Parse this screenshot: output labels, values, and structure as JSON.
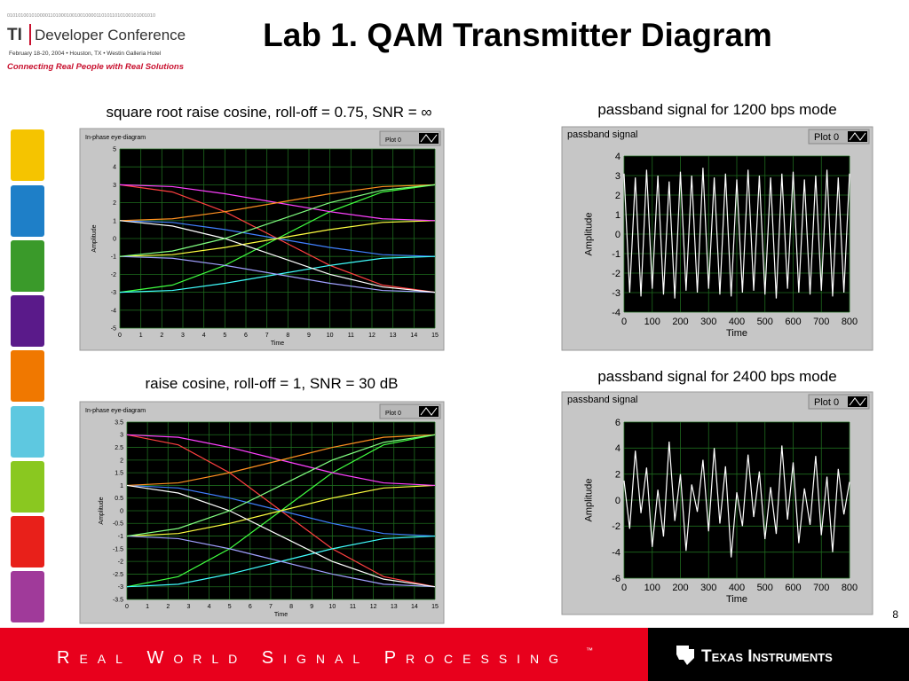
{
  "header": {
    "binary": "0101010010100001101000100100100001101011010100101001010",
    "logo": "TI",
    "conference": "Developer Conference",
    "dates": "February 18-20, 2004 • Houston, TX • Westin Galleria Hotel",
    "slogan": "Connecting Real People with Real Solutions"
  },
  "title": "Lab 1. QAM Transmitter Diagram",
  "page_number": "8",
  "footer": {
    "tagline": "Real World Signal Processing",
    "trademark": "™",
    "company": "Texas Instruments"
  },
  "chart_data": [
    {
      "type": "line",
      "caption": "square root raise cosine, roll-off = 0.75, SNR = ∞",
      "title": "In-phase eye-diagram",
      "legend": "Plot 0",
      "xlabel": "Time",
      "ylabel": "Amplitude",
      "xlim": [
        0,
        15
      ],
      "ylim": [
        -5,
        5
      ],
      "xticks": [
        0,
        1,
        2,
        3,
        4,
        5,
        6,
        7,
        8,
        9,
        10,
        11,
        12,
        13,
        14,
        15
      ],
      "yticks": [
        -5,
        -4,
        -3,
        -2,
        -1,
        0,
        1,
        2,
        3,
        4,
        5
      ],
      "x": [
        0,
        2.5,
        5,
        7.5,
        10,
        12.5,
        15
      ],
      "series": [
        {
          "color": "#ff4040",
          "values": [
            3,
            2.6,
            1.5,
            0,
            -1.5,
            -2.6,
            -3
          ]
        },
        {
          "color": "#40ff40",
          "values": [
            -3,
            -2.6,
            -1.5,
            0,
            1.5,
            2.6,
            3
          ]
        },
        {
          "color": "#4080ff",
          "values": [
            1,
            0.9,
            0.5,
            0,
            -0.5,
            -0.9,
            -1
          ]
        },
        {
          "color": "#ffff40",
          "values": [
            -1,
            -0.9,
            -0.5,
            0,
            0.5,
            0.9,
            1
          ]
        },
        {
          "color": "#ff40ff",
          "values": [
            3,
            2.9,
            2.5,
            2,
            1.5,
            1.1,
            1
          ]
        },
        {
          "color": "#40ffff",
          "values": [
            -3,
            -2.9,
            -2.5,
            -2,
            -1.5,
            -1.1,
            -1
          ]
        },
        {
          "color": "#ff9020",
          "values": [
            1,
            1.1,
            1.5,
            2,
            2.5,
            2.9,
            3
          ]
        },
        {
          "color": "#a0a0ff",
          "values": [
            -1,
            -1.1,
            -1.5,
            -2,
            -2.5,
            -2.9,
            -3
          ]
        },
        {
          "color": "#ffffff",
          "values": [
            1,
            0.7,
            0,
            -1,
            -2,
            -2.7,
            -3
          ]
        },
        {
          "color": "#80ff80",
          "values": [
            -1,
            -0.7,
            0,
            1,
            2,
            2.7,
            3
          ]
        }
      ]
    },
    {
      "type": "line",
      "caption": "raise cosine, roll-off = 1, SNR = 30 dB",
      "title": "In-phase eye-diagram",
      "legend": "Plot 0",
      "xlabel": "Time",
      "ylabel": "Amplitude",
      "xlim": [
        0,
        15
      ],
      "ylim": [
        -3.5,
        3.5
      ],
      "xticks": [
        0,
        1,
        2,
        3,
        4,
        5,
        6,
        7,
        8,
        9,
        10,
        11,
        12,
        13,
        14,
        15
      ],
      "yticks": [
        -3.5,
        -3,
        -2.5,
        -2,
        -1.5,
        -1,
        -0.5,
        0,
        0.5,
        1,
        1.5,
        2,
        2.5,
        3,
        3.5
      ],
      "x": [
        0,
        2.5,
        5,
        7.5,
        10,
        12.5,
        15
      ],
      "series": [
        {
          "color": "#ff4040",
          "values": [
            3,
            2.6,
            1.5,
            0,
            -1.5,
            -2.6,
            -3
          ]
        },
        {
          "color": "#40ff40",
          "values": [
            -3,
            -2.6,
            -1.5,
            0,
            1.5,
            2.6,
            3
          ]
        },
        {
          "color": "#4080ff",
          "values": [
            1,
            0.9,
            0.5,
            0,
            -0.5,
            -0.9,
            -1
          ]
        },
        {
          "color": "#ffff40",
          "values": [
            -1,
            -0.9,
            -0.5,
            0,
            0.5,
            0.9,
            1
          ]
        },
        {
          "color": "#ff40ff",
          "values": [
            3,
            2.9,
            2.5,
            2,
            1.5,
            1.1,
            1
          ]
        },
        {
          "color": "#40ffff",
          "values": [
            -3,
            -2.9,
            -2.5,
            -2,
            -1.5,
            -1.1,
            -1
          ]
        },
        {
          "color": "#ff9020",
          "values": [
            1,
            1.1,
            1.5,
            2,
            2.5,
            2.9,
            3
          ]
        },
        {
          "color": "#a0a0ff",
          "values": [
            -1,
            -1.1,
            -1.5,
            -2,
            -2.5,
            -2.9,
            -3
          ]
        },
        {
          "color": "#ffffff",
          "values": [
            1,
            0.7,
            0,
            -1,
            -2,
            -2.7,
            -3
          ]
        },
        {
          "color": "#80ff80",
          "values": [
            -1,
            -0.7,
            0,
            1,
            2,
            2.7,
            3
          ]
        }
      ]
    },
    {
      "type": "line",
      "caption": "passband signal for 1200 bps mode",
      "title": "passband signal",
      "legend": "Plot 0",
      "xlabel": "Time",
      "ylabel": "Amplitude",
      "xlim": [
        0,
        800
      ],
      "ylim": [
        -4,
        4
      ],
      "xticks": [
        0,
        100,
        200,
        300,
        400,
        500,
        600,
        700,
        800
      ],
      "yticks": [
        -4,
        -3,
        -2,
        -1,
        0,
        1,
        2,
        3,
        4
      ],
      "x": [
        0,
        20,
        40,
        60,
        80,
        100,
        120,
        140,
        160,
        180,
        200,
        220,
        240,
        260,
        280,
        300,
        320,
        340,
        360,
        380,
        400,
        420,
        440,
        460,
        480,
        500,
        520,
        540,
        560,
        580,
        600,
        620,
        640,
        660,
        680,
        700,
        720,
        740,
        760,
        780,
        800
      ],
      "series": [
        {
          "color": "#ffffff",
          "values": [
            3.1,
            -3.0,
            2.9,
            -3.2,
            3.3,
            -2.8,
            3.0,
            -3.1,
            2.7,
            -3.3,
            3.2,
            -2.9,
            3.0,
            -3.0,
            3.4,
            -2.8,
            2.9,
            -3.1,
            3.1,
            -3.2,
            2.8,
            -3.0,
            3.3,
            -2.9,
            3.0,
            -3.1,
            2.9,
            -3.3,
            3.1,
            -2.8,
            3.2,
            -3.0,
            2.8,
            -3.1,
            3.0,
            -2.9,
            3.3,
            -3.2,
            2.9,
            -3.0,
            3.1
          ]
        }
      ]
    },
    {
      "type": "line",
      "caption": "passband signal for 2400 bps mode",
      "title": "passband signal",
      "legend": "Plot 0",
      "xlabel": "Time",
      "ylabel": "Amplitude",
      "xlim": [
        0,
        800
      ],
      "ylim": [
        -6,
        6
      ],
      "xticks": [
        0,
        100,
        200,
        300,
        400,
        500,
        600,
        700,
        800
      ],
      "yticks": [
        -6,
        -4,
        -2,
        0,
        2,
        4,
        6
      ],
      "x": [
        0,
        20,
        40,
        60,
        80,
        100,
        120,
        140,
        160,
        180,
        200,
        220,
        240,
        260,
        280,
        300,
        320,
        340,
        360,
        380,
        400,
        420,
        440,
        460,
        480,
        500,
        520,
        540,
        560,
        580,
        600,
        620,
        640,
        660,
        680,
        700,
        720,
        740,
        760,
        780,
        800
      ],
      "series": [
        {
          "color": "#ffffff",
          "values": [
            1.5,
            -2.2,
            3.8,
            -1.0,
            2.5,
            -3.6,
            0.8,
            -2.8,
            4.5,
            -1.6,
            2.0,
            -3.9,
            1.2,
            -0.9,
            3.1,
            -2.4,
            4.0,
            -1.8,
            2.6,
            -4.4,
            0.6,
            -2.0,
            3.5,
            -1.3,
            2.2,
            -3.0,
            1.0,
            -2.6,
            4.2,
            -1.5,
            2.9,
            -3.3,
            0.9,
            -1.9,
            3.4,
            -2.7,
            1.8,
            -4.0,
            2.4,
            -1.1,
            1.4
          ]
        }
      ]
    }
  ]
}
